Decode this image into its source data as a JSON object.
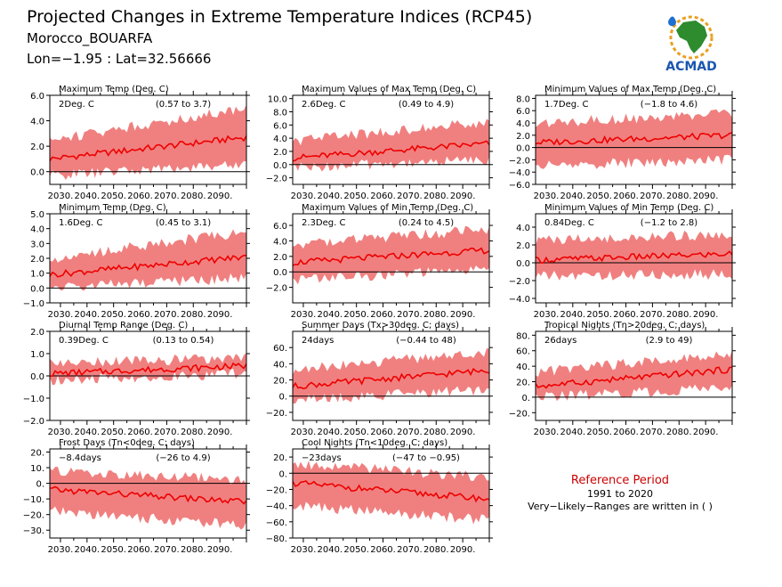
{
  "header": {
    "title": "Projected Changes in Extreme Temperature Indices (RCP45)",
    "location": "Morocco_BOUARFA",
    "coords": "Lon=−1.95 : Lat=32.56666"
  },
  "logo": {
    "text": "ACMAD"
  },
  "reference": {
    "title": "Reference Period",
    "period": "1991 to 2020",
    "note": "Very−Likely−Ranges are written in ( )"
  },
  "x_tick_labels": [
    "2030.",
    "2040.",
    "2050.",
    "2060.",
    "2070.",
    "2080.",
    "2090."
  ],
  "colors": {
    "median_line": "#ee0000",
    "range_fill": "#f08080",
    "reference_title": "#cc0000"
  },
  "chart_data": [
    {
      "type": "area",
      "title": "Maximum Temp (Deg. C)",
      "change": "2Deg. C",
      "range": "(0.57 to 3.7)",
      "xlim": [
        2026,
        2100
      ],
      "ylim": [
        -1.0,
        6.0
      ],
      "yticks": [
        0,
        2,
        4,
        6
      ],
      "ytick_labels": [
        "0.0",
        "2.0",
        "4.0",
        "6.0"
      ],
      "median": {
        "x": [
          2026,
          2100
        ],
        "y": [
          1.0,
          2.7
        ]
      },
      "band": {
        "x": [
          2026,
          2100
        ],
        "lower": [
          -0.3,
          0.6
        ],
        "upper": [
          2.5,
          5.0
        ]
      }
    },
    {
      "type": "area",
      "title": "Maximum Values of Max Temp (Deg. C)",
      "change": "2.6Deg. C",
      "range": "(0.49 to 4.9)",
      "xlim": [
        2026,
        2100
      ],
      "ylim": [
        -3.0,
        10.5
      ],
      "yticks": [
        -2,
        0,
        2,
        4,
        6,
        8,
        10
      ],
      "ytick_labels": [
        "−2.0",
        "0.0",
        "2.0",
        "4.0",
        "6.0",
        "8.0",
        "10.0"
      ],
      "median": {
        "x": [
          2026,
          2100
        ],
        "y": [
          1.0,
          3.2
        ]
      },
      "band": {
        "x": [
          2026,
          2100
        ],
        "lower": [
          -0.5,
          0.8
        ],
        "upper": [
          3.5,
          6.5
        ]
      }
    },
    {
      "type": "area",
      "title": "Minimum Values of Max Temp (Deg. C)",
      "change": "1.7Deg. C",
      "range": "(−1.8 to 4.6)",
      "xlim": [
        2026,
        2100
      ],
      "ylim": [
        -6.0,
        8.5
      ],
      "yticks": [
        -6,
        -4,
        -2,
        0,
        2,
        4,
        6,
        8
      ],
      "ytick_labels": [
        "−6.0",
        "−4.0",
        "−2.0",
        "0.0",
        "2.0",
        "4.0",
        "6.0",
        "8.0"
      ],
      "median": {
        "x": [
          2026,
          2100
        ],
        "y": [
          0.8,
          2.0
        ]
      },
      "band": {
        "x": [
          2026,
          2100
        ],
        "lower": [
          -3.0,
          -2.0
        ],
        "upper": [
          4.0,
          5.5
        ]
      }
    },
    {
      "type": "area",
      "title": "Minimum Temp (Deg. C)",
      "change": "1.6Deg. C",
      "range": "(0.45 to 3.1)",
      "xlim": [
        2026,
        2100
      ],
      "ylim": [
        -1.0,
        5.0
      ],
      "yticks": [
        -1,
        0,
        1,
        2,
        3,
        4,
        5
      ],
      "ytick_labels": [
        "−1.0",
        "0.0",
        "1.0",
        "2.0",
        "3.0",
        "4.0",
        "5.0"
      ],
      "median": {
        "x": [
          2026,
          2100
        ],
        "y": [
          0.9,
          2.1
        ]
      },
      "band": {
        "x": [
          2026,
          2100
        ],
        "lower": [
          0.0,
          0.7
        ],
        "upper": [
          2.0,
          3.8
        ]
      }
    },
    {
      "type": "area",
      "title": "Maximum Values of Min Temp (Deg. C)",
      "change": "2.3Deg. C",
      "range": "(0.24 to 4.5)",
      "xlim": [
        2026,
        2100
      ],
      "ylim": [
        -4.0,
        7.5
      ],
      "yticks": [
        -2,
        0,
        2,
        4,
        6
      ],
      "ytick_labels": [
        "−2.0",
        "0.0",
        "2.0",
        "4.0",
        "6.0"
      ],
      "median": {
        "x": [
          2026,
          2100
        ],
        "y": [
          1.2,
          2.8
        ]
      },
      "band": {
        "x": [
          2026,
          2100
        ],
        "lower": [
          -1.0,
          0.3
        ],
        "upper": [
          3.5,
          5.5
        ]
      }
    },
    {
      "type": "area",
      "title": "Minimum Values of Min Temp (Deg. C)",
      "change": "0.84Deg. C",
      "range": "(−1.2 to 2.8)",
      "xlim": [
        2026,
        2100
      ],
      "ylim": [
        -4.5,
        5.5
      ],
      "yticks": [
        -4,
        -2,
        0,
        2,
        4
      ],
      "ytick_labels": [
        "−4.0",
        "−2.0",
        "0.0",
        "2.0",
        "4.0"
      ],
      "median": {
        "x": [
          2026,
          2100
        ],
        "y": [
          0.3,
          1.0
        ]
      },
      "band": {
        "x": [
          2026,
          2100
        ],
        "lower": [
          -1.5,
          -1.3
        ],
        "upper": [
          2.5,
          3.2
        ]
      }
    },
    {
      "type": "area",
      "title": "Diurnal Temp Range (Deg. C)",
      "change": "0.39Deg. C",
      "range": "(0.13 to 0.54)",
      "xlim": [
        2026,
        2100
      ],
      "ylim": [
        -2.0,
        2.0
      ],
      "yticks": [
        -2,
        -1,
        0,
        1,
        2
      ],
      "ytick_labels": [
        "−2.0",
        "−1.0",
        "0.0",
        "1.0",
        "2.0"
      ],
      "median": {
        "x": [
          2026,
          2100
        ],
        "y": [
          0.1,
          0.45
        ]
      },
      "band": {
        "x": [
          2026,
          2100
        ],
        "lower": [
          -0.2,
          0.1
        ],
        "upper": [
          0.6,
          0.8
        ]
      }
    },
    {
      "type": "area",
      "title": "Summer Days (Tx>30deg. C; days)",
      "change": "24days",
      "range": "(−0.44 to 48)",
      "xlim": [
        2026,
        2100
      ],
      "ylim": [
        -30,
        80
      ],
      "yticks": [
        -20,
        0,
        20,
        40,
        60
      ],
      "ytick_labels": [
        "−20.",
        "0.",
        "20.",
        "40.",
        "60."
      ],
      "median": {
        "x": [
          2026,
          2100
        ],
        "y": [
          12,
          32
        ]
      },
      "band": {
        "x": [
          2026,
          2100
        ],
        "lower": [
          -5,
          8
        ],
        "upper": [
          32,
          55
        ]
      }
    },
    {
      "type": "area",
      "title": "Tropical Nights (Tn>20deg. C; days)",
      "change": "26days",
      "range": "(2.9 to 49)",
      "xlim": [
        2026,
        2100
      ],
      "ylim": [
        -30,
        85
      ],
      "yticks": [
        -20,
        0,
        20,
        40,
        60,
        80
      ],
      "ytick_labels": [
        "−20.",
        "0.",
        "20.",
        "40.",
        "60.",
        "80."
      ],
      "median": {
        "x": [
          2026,
          2100
        ],
        "y": [
          14,
          36
        ]
      },
      "band": {
        "x": [
          2026,
          2100
        ],
        "lower": [
          0,
          12
        ],
        "upper": [
          32,
          58
        ]
      }
    },
    {
      "type": "area",
      "title": "Frost Days (Tn<0deg. C; days)",
      "change": "−8.4days",
      "range": "(−26 to 4.9)",
      "xlim": [
        2026,
        2100
      ],
      "ylim": [
        -35,
        22
      ],
      "yticks": [
        -30,
        -20,
        -10,
        0,
        10,
        20
      ],
      "ytick_labels": [
        "−30.",
        "−20.",
        "−10.",
        "0.",
        "10.",
        "20."
      ],
      "median": {
        "x": [
          2026,
          2100
        ],
        "y": [
          -4,
          -12
        ]
      },
      "band": {
        "x": [
          2026,
          2100
        ],
        "lower": [
          -18,
          -27
        ],
        "upper": [
          8,
          2
        ]
      }
    },
    {
      "type": "area",
      "title": "Cool Nights (Tn<10deg. C; days)",
      "change": "−23days",
      "range": "(−47 to −0.95)",
      "xlim": [
        2026,
        2100
      ],
      "ylim": [
        -80,
        30
      ],
      "yticks": [
        -80,
        -60,
        -40,
        -20,
        0,
        20
      ],
      "ytick_labels": [
        "−80.",
        "−60.",
        "−40.",
        "−20.",
        "0.",
        "20."
      ],
      "median": {
        "x": [
          2026,
          2100
        ],
        "y": [
          -12,
          -32
        ]
      },
      "band": {
        "x": [
          2026,
          2100
        ],
        "lower": [
          -40,
          -58
        ],
        "upper": [
          12,
          -5
        ]
      }
    }
  ]
}
